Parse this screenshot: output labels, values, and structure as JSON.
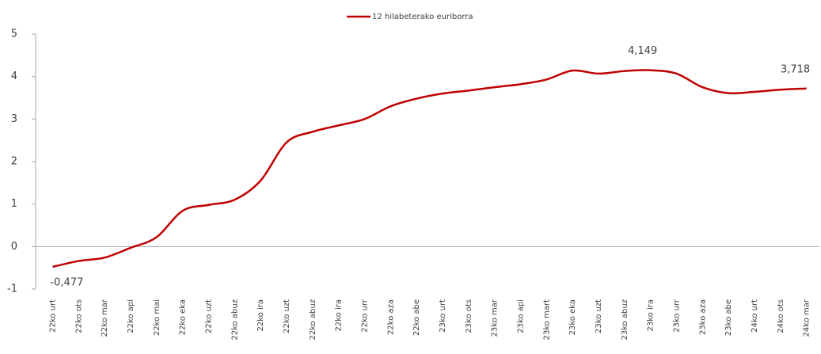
{
  "chart_data": {
    "type": "line",
    "categories": [
      "22ko urt",
      "22ko ots",
      "22ko mar",
      "22ko api",
      "22ko mai",
      "22ko eka",
      "22ko uzt",
      "22ko abuz",
      "22ko ira",
      "22ko uzt",
      "22ko abuz",
      "22ko ira",
      "22ko urr",
      "22ko aza",
      "22ko abe",
      "23ko urt",
      "23ko ots",
      "23ko mar",
      "23ko api",
      "23ko mart",
      "23ko eka",
      "23ko uzt",
      "23ko abuz",
      "23ko ira",
      "23ko urr",
      "23ko aza",
      "23ko abe",
      "24ko urt",
      "24ko ots",
      "24ko mar"
    ],
    "series": [
      {
        "name": "12 hilabeterako euriborra",
        "color": "#c00000",
        "values": [
          -0.477,
          -0.34,
          -0.26,
          -0.03,
          0.22,
          0.84,
          0.98,
          1.1,
          1.55,
          2.45,
          2.7,
          2.85,
          3.0,
          3.3,
          3.48,
          3.6,
          3.67,
          3.75,
          3.82,
          3.93,
          4.14,
          4.07,
          4.13,
          4.149,
          4.07,
          3.75,
          3.61,
          3.64,
          3.69,
          3.718
        ],
        "value_labels": [
          "-0,477",
          null,
          null,
          null,
          null,
          null,
          null,
          null,
          null,
          null,
          null,
          null,
          null,
          null,
          null,
          null,
          null,
          null,
          null,
          null,
          null,
          null,
          null,
          "4,149",
          null,
          null,
          null,
          null,
          null,
          "3,718"
        ]
      }
    ],
    "ylim": [
      -1,
      5
    ],
    "yticks": [
      -1,
      0,
      1,
      2,
      3,
      4,
      5
    ],
    "grid": false,
    "legend": "top"
  }
}
